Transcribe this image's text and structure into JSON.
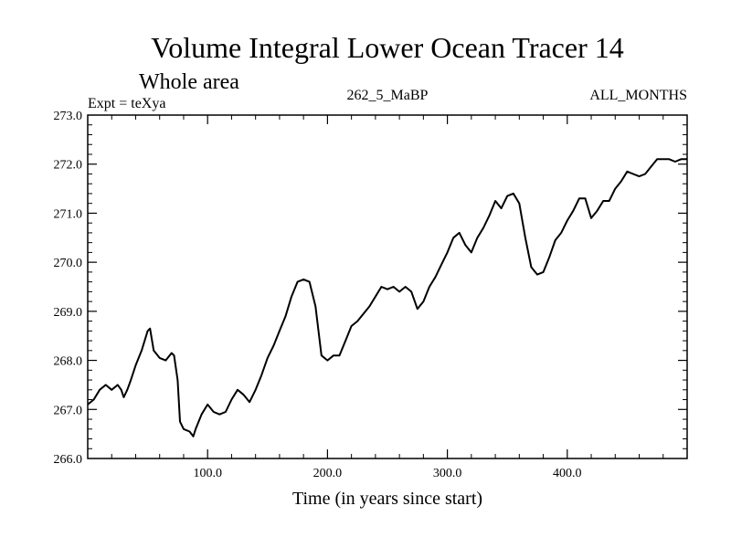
{
  "chart_data": {
    "type": "line",
    "title": "Volume Integral Lower Ocean Tracer 14",
    "subtitle": "Whole area",
    "left_label": "Expt = teXya",
    "center_label": "262_5_MaBP",
    "right_label": "ALL_MONTHS",
    "xlabel": "Time (in years since start)",
    "ylabel": "",
    "xlim": [
      0,
      500
    ],
    "ylim": [
      266.0,
      273.0
    ],
    "x_ticks": [
      100,
      200,
      300,
      400
    ],
    "x_tick_labels": [
      "100.0",
      "200.0",
      "300.0",
      "400.0"
    ],
    "y_ticks": [
      266,
      267,
      268,
      269,
      270,
      271,
      272,
      273
    ],
    "y_tick_labels": [
      "266.0",
      "267.0",
      "268.0",
      "269.0",
      "270.0",
      "271.0",
      "272.0",
      "273.0"
    ],
    "grid": false,
    "line_color": "#000000",
    "series": [
      {
        "x": [
          0,
          5,
          10,
          15,
          20,
          25,
          28,
          30,
          33,
          36,
          40,
          45,
          50,
          52,
          55,
          60,
          65,
          70,
          72,
          75,
          77,
          80,
          85,
          88,
          90,
          95,
          100,
          105,
          110,
          115,
          120,
          125,
          130,
          135,
          140,
          145,
          150,
          155,
          160,
          165,
          170,
          175,
          180,
          185,
          190,
          195,
          200,
          205,
          210,
          215,
          220,
          225,
          230,
          235,
          240,
          245,
          250,
          255,
          260,
          265,
          270,
          275,
          280,
          285,
          290,
          295,
          300,
          305,
          310,
          315,
          320,
          325,
          330,
          335,
          340,
          345,
          350,
          355,
          360,
          365,
          370,
          375,
          380,
          385,
          390,
          395,
          400,
          405,
          410,
          415,
          420,
          425,
          430,
          435,
          440,
          445,
          450,
          455,
          460,
          465,
          470,
          475,
          480,
          485,
          490,
          495,
          500
        ],
        "y": [
          267.1,
          267.2,
          267.4,
          267.5,
          267.4,
          267.5,
          267.4,
          267.25,
          267.4,
          267.6,
          267.9,
          268.2,
          268.6,
          268.65,
          268.2,
          268.05,
          268.0,
          268.15,
          268.1,
          267.6,
          266.75,
          266.6,
          266.55,
          266.45,
          266.6,
          266.9,
          267.1,
          266.95,
          266.9,
          266.95,
          267.2,
          267.4,
          267.3,
          267.15,
          267.4,
          267.7,
          268.05,
          268.3,
          268.6,
          268.9,
          269.3,
          269.6,
          269.65,
          269.6,
          269.1,
          268.1,
          268.0,
          268.1,
          268.1,
          268.4,
          268.7,
          268.8,
          268.95,
          269.1,
          269.3,
          269.5,
          269.45,
          269.5,
          269.4,
          269.5,
          269.4,
          269.05,
          269.2,
          269.5,
          269.7,
          269.95,
          270.2,
          270.5,
          270.6,
          270.35,
          270.2,
          270.5,
          270.7,
          270.95,
          271.25,
          271.1,
          271.35,
          271.4,
          271.2,
          270.5,
          269.9,
          269.75,
          269.8,
          270.1,
          270.45,
          270.6,
          270.85,
          271.05,
          271.3,
          271.3,
          270.9,
          271.05,
          271.25,
          271.25,
          271.5,
          271.65,
          271.85,
          271.8,
          271.75,
          271.8,
          271.95,
          272.1,
          272.1,
          272.1,
          272.05,
          272.1,
          272.1
        ]
      }
    ]
  }
}
